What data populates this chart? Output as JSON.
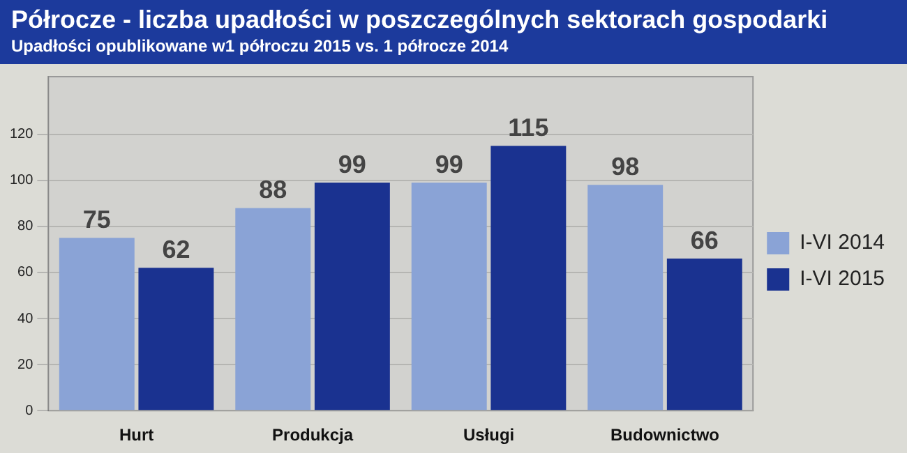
{
  "chart_data": {
    "type": "bar",
    "title": "Półrocze - liczba upadłości w poszczególnych sektorach gospodarki",
    "subtitle": "Upadłości opublikowane w1 półroczu 2015 vs. 1 półrocze 2014",
    "categories": [
      "Hurt",
      "Produkcja",
      "Usługi",
      "Budownictwo"
    ],
    "series": [
      {
        "name": "I-VI 2014",
        "color": "#8aa3d6",
        "values": [
          75,
          88,
          99,
          98
        ]
      },
      {
        "name": "I-VI 2015",
        "color": "#1a3290",
        "values": [
          62,
          99,
          115,
          66
        ]
      }
    ],
    "ylim": [
      0,
      145
    ],
    "yticks": [
      0,
      20,
      40,
      60,
      80,
      100,
      120
    ],
    "grid": "y",
    "legend": "right",
    "data_labels": true
  }
}
